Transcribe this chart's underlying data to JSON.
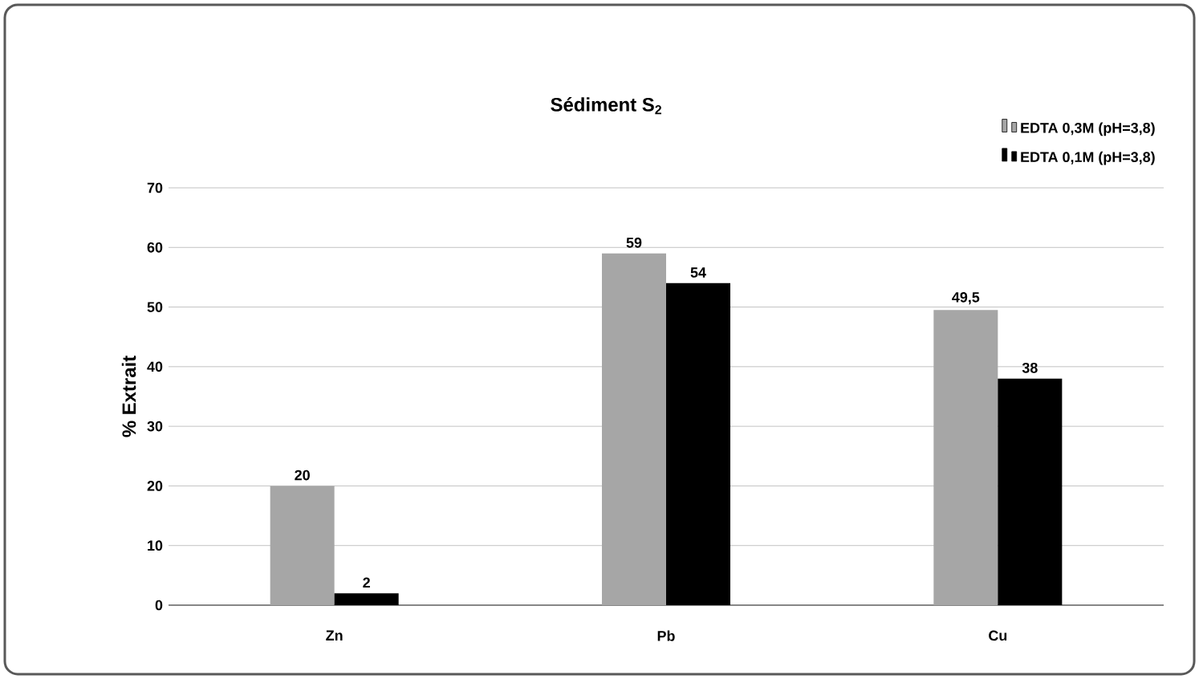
{
  "chart_data": {
    "type": "bar",
    "title": "Sédiment S$_{2}$",
    "ylabel": "% Extrait",
    "categories": [
      "Zn",
      "Pb",
      "Cu"
    ],
    "series": [
      {
        "name": "EDTA 0,3M (pH=3,8)",
        "color": "#a6a6a6",
        "values": [
          20,
          59,
          49.5
        ],
        "value_labels": [
          "20",
          "59",
          "49,5"
        ]
      },
      {
        "name": "EDTA 0,1M (pH=3,8)",
        "color": "#000000",
        "values": [
          2,
          54,
          38
        ],
        "value_labels": [
          "2",
          "54",
          "38"
        ]
      }
    ],
    "ylim": [
      0,
      70
    ],
    "yticks": [
      0,
      10,
      20,
      30,
      40,
      50,
      60,
      70
    ],
    "grid": "y",
    "legend": "top right"
  }
}
